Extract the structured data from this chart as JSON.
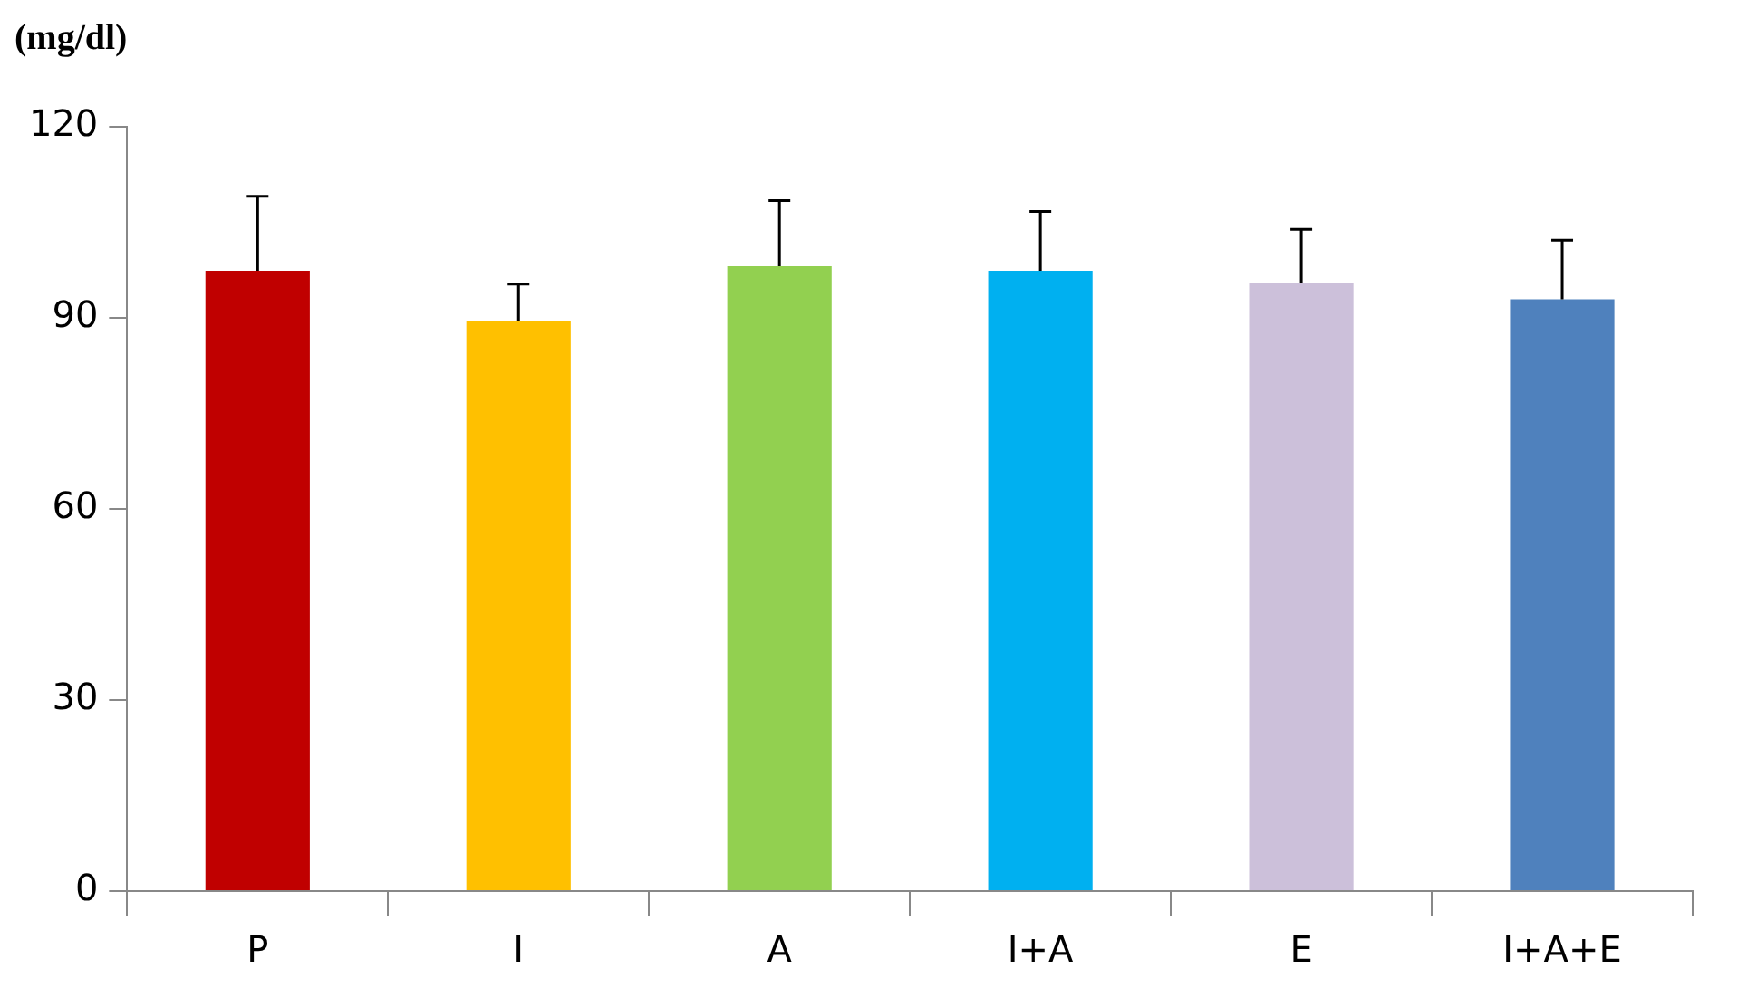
{
  "chart_data": {
    "type": "bar",
    "ylabel": "(mg/dl)",
    "categories": [
      "P",
      "I",
      "A",
      "I+A",
      "E",
      "I+A+E"
    ],
    "values": [
      97.4,
      89.5,
      98.1,
      97.4,
      95.4,
      92.9
    ],
    "colors": [
      "#c00000",
      "#ffc000",
      "#92d050",
      "#00b0f0",
      "#ccc0da",
      "#4f81bd"
    ],
    "errors": [
      [
        97.4,
        109.1
      ],
      [
        89.5,
        95.3
      ],
      [
        98.1,
        108.4
      ],
      [
        97.4,
        106.7
      ],
      [
        95.4,
        103.9
      ],
      [
        92.9,
        102.2
      ]
    ],
    "ylim": [
      0,
      120
    ],
    "yticks": [
      0,
      30,
      60,
      90,
      120
    ],
    "grid": false,
    "legend": false
  }
}
